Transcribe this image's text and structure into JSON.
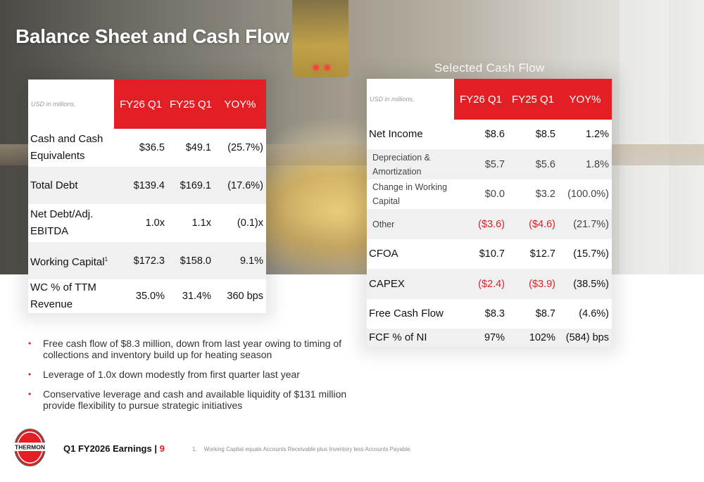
{
  "title": "Balance Sheet and Cash Flow",
  "balance_sheet": {
    "unit_note": "USD in millions,",
    "headers": [
      "FY26 Q1",
      "FY25 Q1",
      "YOY%"
    ],
    "rows": [
      {
        "label": "Cash and Cash Equivalents",
        "fy26": "$36.5",
        "fy25": "$49.1",
        "yoy": "(25.7%)"
      },
      {
        "label": "Total Debt",
        "fy26": "$139.4",
        "fy25": "$169.1",
        "yoy": "(17.6%)"
      },
      {
        "label": "Net Debt/Adj. EBITDA",
        "fy26": "1.0x",
        "fy25": "1.1x",
        "yoy": "(0.1)x"
      },
      {
        "label": "Working Capital",
        "sup": "1",
        "fy26": "$172.3",
        "fy25": "$158.0",
        "yoy": "9.1%"
      },
      {
        "label": "WC % of TTM Revenue",
        "fy26": "35.0%",
        "fy25": "31.4%",
        "yoy": "360 bps"
      }
    ]
  },
  "cash_flow": {
    "title": "Selected Cash Flow",
    "unit_note": "USD in millions,",
    "headers": [
      "FY26 Q1",
      "FY25 Q1",
      "YOY%"
    ],
    "rows": [
      {
        "label": "Net Income",
        "fy26": "$8.6",
        "fy25": "$8.5",
        "yoy": "1.2%"
      },
      {
        "label": "Depreciation & Amortization",
        "fy26": "$5.7",
        "fy25": "$5.6",
        "yoy": "1.8%"
      },
      {
        "label": "Change in Working Capital",
        "fy26": "$0.0",
        "fy25": "$3.2",
        "yoy": "(100.0%)"
      },
      {
        "label": "Other",
        "fy26": "($3.6)",
        "fy25": "($4.6)",
        "yoy": "(21.7%)"
      },
      {
        "label": "CFOA",
        "fy26": "$10.7",
        "fy25": "$12.7",
        "yoy": "(15.7%)"
      },
      {
        "label": "CAPEX",
        "fy26": "($2.4)",
        "fy25": "($3.9)",
        "yoy": "(38.5%)"
      },
      {
        "label": "Free Cash Flow",
        "fy26": "$8.3",
        "fy25": "$8.7",
        "yoy": "(4.6%)"
      },
      {
        "label": "FCF % of NI",
        "fy26": "97%",
        "fy25": "102%",
        "yoy": "(584) bps"
      }
    ]
  },
  "bullets": [
    "Free cash flow of $8.3 million, down from last year owing to timing of collections and inventory build up for heating season",
    "Leverage of 1.0x down modestly from first quarter last year",
    "Conservative leverage and cash and available liquidity of $131 million provide flexibility to pursue strategic initiatives"
  ],
  "footer": {
    "logo_text": "THERMON",
    "title": "Q1 FY2026 Earnings | ",
    "page": "9",
    "footnote_num": "1.",
    "footnote": "Working Capital equals Accounts Receivable plus Inventory less Accounts Payable."
  },
  "colors": {
    "accent": "#e31e24",
    "alt_row": "#f0f0f0"
  }
}
